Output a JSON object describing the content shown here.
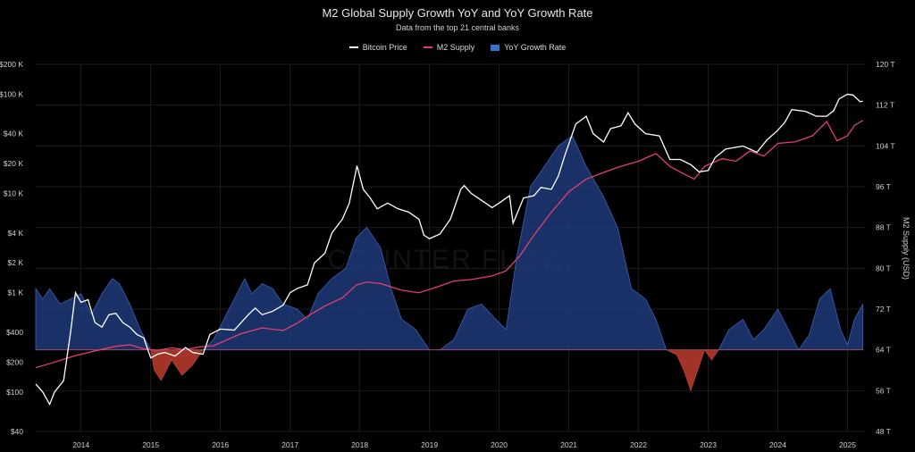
{
  "colors": {
    "background": "#000000",
    "bitcoin": "#ffffff",
    "m2": "#e0406e",
    "yoy_positive": "#1f3a7a",
    "yoy_positive_edge": "#3b5fb3",
    "yoy_negative": "#b23a2a",
    "grid": "#1c1c1c"
  },
  "chart_data": {
    "type": "line",
    "title": "M2 Global Supply Growth YoY and YoY Growth Rate",
    "subtitle": "Data from the top 21 central banks",
    "legend": [
      "Bitcoin Price",
      "M2 Supply",
      "YoY Growth Rate"
    ],
    "legend_placement": "top-center",
    "grid": true,
    "watermark": "COUNTER FLOW",
    "x_ticks": [
      "2014",
      "2015",
      "2016",
      "2017",
      "2018",
      "2019",
      "2020",
      "2021",
      "2022",
      "2023",
      "2024",
      "2025"
    ],
    "x_range": [
      2013.35,
      2025.25
    ],
    "left_axis": {
      "scale": "log",
      "ticks": [
        {
          "value": 40,
          "label": "$40"
        },
        {
          "value": 100,
          "label": "$100"
        },
        {
          "value": 200,
          "label": "$200"
        },
        {
          "value": 400,
          "label": "$400"
        },
        {
          "value": 1000,
          "label": "$1 K"
        },
        {
          "value": 2000,
          "label": "$2 K"
        },
        {
          "value": 4000,
          "label": "$4 K"
        },
        {
          "value": 10000,
          "label": "$10 K"
        },
        {
          "value": 20000,
          "label": "$20 K"
        },
        {
          "value": 40000,
          "label": "$40 K"
        },
        {
          "value": 100000,
          "label": "$100 K"
        },
        {
          "value": 200000,
          "label": "$200 K"
        }
      ]
    },
    "right_axis": {
      "label": "M2 Supply (USD)",
      "range": [
        48,
        120
      ],
      "ticks": [
        {
          "value": 48,
          "label": "48 T"
        },
        {
          "value": 56,
          "label": "56 T"
        },
        {
          "value": 64,
          "label": "64 T"
        },
        {
          "value": 72,
          "label": "72 T"
        },
        {
          "value": 80,
          "label": "80 T"
        },
        {
          "value": 88,
          "label": "88 T"
        },
        {
          "value": 96,
          "label": "96 T"
        },
        {
          "value": 104,
          "label": "104 T"
        },
        {
          "value": 112,
          "label": "112 T"
        },
        {
          "value": 120,
          "label": "120 T"
        }
      ]
    },
    "series": [
      {
        "name": "Bitcoin Price",
        "axis": "left",
        "points": [
          [
            2013.35,
            120
          ],
          [
            2013.45,
            100
          ],
          [
            2013.55,
            75
          ],
          [
            2013.62,
            100
          ],
          [
            2013.75,
            130
          ],
          [
            2013.85,
            400
          ],
          [
            2013.92,
            1000
          ],
          [
            2014.0,
            800
          ],
          [
            2014.1,
            850
          ],
          [
            2014.2,
            500
          ],
          [
            2014.3,
            450
          ],
          [
            2014.4,
            600
          ],
          [
            2014.5,
            620
          ],
          [
            2014.6,
            500
          ],
          [
            2014.7,
            450
          ],
          [
            2014.8,
            380
          ],
          [
            2014.9,
            350
          ],
          [
            2015.0,
            220
          ],
          [
            2015.1,
            240
          ],
          [
            2015.2,
            250
          ],
          [
            2015.35,
            230
          ],
          [
            2015.5,
            280
          ],
          [
            2015.6,
            250
          ],
          [
            2015.75,
            240
          ],
          [
            2015.85,
            380
          ],
          [
            2016.0,
            430
          ],
          [
            2016.2,
            420
          ],
          [
            2016.4,
            600
          ],
          [
            2016.5,
            700
          ],
          [
            2016.6,
            600
          ],
          [
            2016.75,
            650
          ],
          [
            2016.9,
            750
          ],
          [
            2017.0,
            1000
          ],
          [
            2017.1,
            1100
          ],
          [
            2017.25,
            1200
          ],
          [
            2017.35,
            2000
          ],
          [
            2017.5,
            2500
          ],
          [
            2017.6,
            4000
          ],
          [
            2017.75,
            5500
          ],
          [
            2017.85,
            8000
          ],
          [
            2017.96,
            19000
          ],
          [
            2018.05,
            11000
          ],
          [
            2018.15,
            9000
          ],
          [
            2018.25,
            7000
          ],
          [
            2018.4,
            8000
          ],
          [
            2018.55,
            7000
          ],
          [
            2018.7,
            6500
          ],
          [
            2018.85,
            5500
          ],
          [
            2018.92,
            3800
          ],
          [
            2019.0,
            3500
          ],
          [
            2019.15,
            3900
          ],
          [
            2019.3,
            5500
          ],
          [
            2019.45,
            11000
          ],
          [
            2019.5,
            12000
          ],
          [
            2019.6,
            10000
          ],
          [
            2019.75,
            8500
          ],
          [
            2019.9,
            7200
          ],
          [
            2020.0,
            8000
          ],
          [
            2020.15,
            9500
          ],
          [
            2020.2,
            5000
          ],
          [
            2020.35,
            9000
          ],
          [
            2020.5,
            9500
          ],
          [
            2020.6,
            11500
          ],
          [
            2020.75,
            11000
          ],
          [
            2020.85,
            15000
          ],
          [
            2020.95,
            25000
          ],
          [
            2021.1,
            50000
          ],
          [
            2021.25,
            60000
          ],
          [
            2021.35,
            40000
          ],
          [
            2021.5,
            33000
          ],
          [
            2021.6,
            45000
          ],
          [
            2021.75,
            48000
          ],
          [
            2021.85,
            65000
          ],
          [
            2021.95,
            50000
          ],
          [
            2022.1,
            40000
          ],
          [
            2022.3,
            38000
          ],
          [
            2022.45,
            22000
          ],
          [
            2022.6,
            22000
          ],
          [
            2022.75,
            19500
          ],
          [
            2022.87,
            16500
          ],
          [
            2023.0,
            17000
          ],
          [
            2023.1,
            23000
          ],
          [
            2023.25,
            28000
          ],
          [
            2023.5,
            30000
          ],
          [
            2023.7,
            26000
          ],
          [
            2023.85,
            35000
          ],
          [
            2023.98,
            42000
          ],
          [
            2024.1,
            52000
          ],
          [
            2024.2,
            70000
          ],
          [
            2024.4,
            67000
          ],
          [
            2024.55,
            60000
          ],
          [
            2024.7,
            60000
          ],
          [
            2024.8,
            68000
          ],
          [
            2024.88,
            90000
          ],
          [
            2025.0,
            100000
          ],
          [
            2025.08,
            98000
          ],
          [
            2025.18,
            84000
          ],
          [
            2025.22,
            85000
          ]
        ]
      },
      {
        "name": "M2 Supply",
        "axis": "right",
        "points": [
          [
            2013.35,
            60.5
          ],
          [
            2013.6,
            61.5
          ],
          [
            2013.9,
            62.8
          ],
          [
            2014.2,
            63.8
          ],
          [
            2014.5,
            64.7
          ],
          [
            2014.7,
            65.0
          ],
          [
            2014.9,
            64.2
          ],
          [
            2015.1,
            63.9
          ],
          [
            2015.3,
            64.4
          ],
          [
            2015.5,
            64.0
          ],
          [
            2015.7,
            64.6
          ],
          [
            2015.9,
            64.8
          ],
          [
            2016.1,
            66.0
          ],
          [
            2016.3,
            67.2
          ],
          [
            2016.6,
            68.3
          ],
          [
            2016.9,
            67.8
          ],
          [
            2017.1,
            69.2
          ],
          [
            2017.3,
            71.0
          ],
          [
            2017.5,
            72.6
          ],
          [
            2017.75,
            74.2
          ],
          [
            2017.95,
            76.7
          ],
          [
            2018.1,
            77.3
          ],
          [
            2018.3,
            77.0
          ],
          [
            2018.6,
            75.7
          ],
          [
            2018.85,
            75.2
          ],
          [
            2019.1,
            76.3
          ],
          [
            2019.35,
            77.5
          ],
          [
            2019.6,
            77.8
          ],
          [
            2019.9,
            78.5
          ],
          [
            2020.1,
            79.5
          ],
          [
            2020.3,
            82.5
          ],
          [
            2020.5,
            86.5
          ],
          [
            2020.75,
            91.0
          ],
          [
            2021.0,
            95.0
          ],
          [
            2021.25,
            97.5
          ],
          [
            2021.5,
            98.8
          ],
          [
            2021.75,
            100.0
          ],
          [
            2022.0,
            101.0
          ],
          [
            2022.25,
            102.5
          ],
          [
            2022.45,
            100.0
          ],
          [
            2022.65,
            98.5
          ],
          [
            2022.8,
            97.5
          ],
          [
            2022.95,
            100.0
          ],
          [
            2023.2,
            101.5
          ],
          [
            2023.4,
            101.0
          ],
          [
            2023.6,
            103.0
          ],
          [
            2023.8,
            102.0
          ],
          [
            2024.0,
            104.5
          ],
          [
            2024.25,
            104.8
          ],
          [
            2024.5,
            106.0
          ],
          [
            2024.7,
            108.8
          ],
          [
            2024.85,
            105.0
          ],
          [
            2025.0,
            106.0
          ],
          [
            2025.1,
            108.0
          ],
          [
            2025.22,
            109.0
          ]
        ]
      },
      {
        "name": "YoY Growth Rate",
        "axis": "right",
        "baseline": 64,
        "points": [
          [
            2013.35,
            76
          ],
          [
            2013.45,
            74
          ],
          [
            2013.55,
            76
          ],
          [
            2013.7,
            73
          ],
          [
            2013.85,
            74
          ],
          [
            2014.0,
            75
          ],
          [
            2014.15,
            71
          ],
          [
            2014.3,
            75
          ],
          [
            2014.45,
            78
          ],
          [
            2014.55,
            77
          ],
          [
            2014.7,
            73
          ],
          [
            2014.85,
            68
          ],
          [
            2015.0,
            64
          ],
          [
            2015.05,
            60
          ],
          [
            2015.15,
            58
          ],
          [
            2015.3,
            62
          ],
          [
            2015.45,
            59
          ],
          [
            2015.6,
            61
          ],
          [
            2015.75,
            64
          ],
          [
            2015.9,
            66
          ],
          [
            2016.05,
            70
          ],
          [
            2016.2,
            74
          ],
          [
            2016.35,
            78
          ],
          [
            2016.45,
            75
          ],
          [
            2016.6,
            77
          ],
          [
            2016.75,
            76
          ],
          [
            2016.9,
            73
          ],
          [
            2017.1,
            72
          ],
          [
            2017.25,
            70
          ],
          [
            2017.4,
            75
          ],
          [
            2017.6,
            78
          ],
          [
            2017.8,
            80
          ],
          [
            2017.95,
            86
          ],
          [
            2018.1,
            88
          ],
          [
            2018.3,
            84
          ],
          [
            2018.45,
            76
          ],
          [
            2018.6,
            70
          ],
          [
            2018.8,
            68
          ],
          [
            2019.0,
            64
          ],
          [
            2019.15,
            64
          ],
          [
            2019.35,
            66
          ],
          [
            2019.55,
            72
          ],
          [
            2019.75,
            73
          ],
          [
            2019.95,
            70
          ],
          [
            2020.1,
            68
          ],
          [
            2020.25,
            82
          ],
          [
            2020.45,
            96
          ],
          [
            2020.65,
            100
          ],
          [
            2020.85,
            104
          ],
          [
            2021.05,
            106
          ],
          [
            2021.25,
            100
          ],
          [
            2021.5,
            94
          ],
          [
            2021.7,
            88
          ],
          [
            2021.9,
            76
          ],
          [
            2022.1,
            74
          ],
          [
            2022.25,
            70
          ],
          [
            2022.4,
            64
          ],
          [
            2022.55,
            63
          ],
          [
            2022.65,
            60
          ],
          [
            2022.75,
            56
          ],
          [
            2022.85,
            60
          ],
          [
            2022.95,
            64
          ],
          [
            2023.05,
            62
          ],
          [
            2023.15,
            64
          ],
          [
            2023.3,
            68
          ],
          [
            2023.5,
            70
          ],
          [
            2023.65,
            66
          ],
          [
            2023.8,
            68
          ],
          [
            2024.0,
            72
          ],
          [
            2024.15,
            68
          ],
          [
            2024.3,
            64
          ],
          [
            2024.45,
            67
          ],
          [
            2024.6,
            74
          ],
          [
            2024.75,
            76
          ],
          [
            2024.9,
            68
          ],
          [
            2025.0,
            65
          ],
          [
            2025.1,
            70
          ],
          [
            2025.22,
            73
          ]
        ]
      }
    ]
  }
}
